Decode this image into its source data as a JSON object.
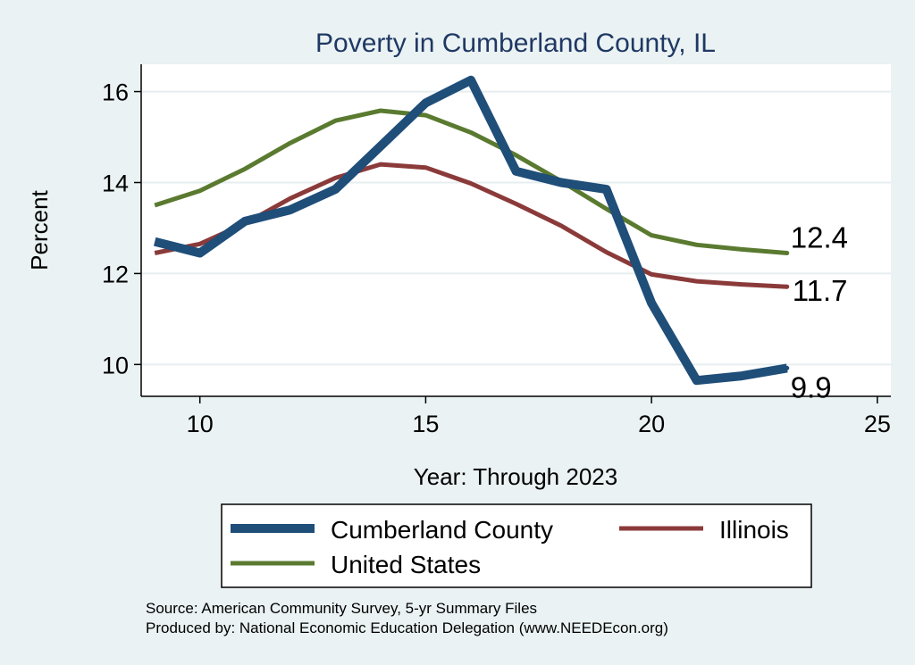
{
  "chart_data": {
    "type": "line",
    "title": "Poverty in Cumberland County, IL",
    "xlabel": "Year: Through 2023",
    "ylabel": "Percent",
    "xlim": [
      8.7,
      25.3
    ],
    "ylim": [
      9.3,
      16.6
    ],
    "x_ticks": [
      10,
      15,
      20,
      25
    ],
    "y_ticks": [
      10,
      12,
      14,
      16
    ],
    "grid": true,
    "legend_position": "bottom",
    "series": [
      {
        "name": "Cumberland County",
        "color": "#1f4e79",
        "x": [
          9,
          10,
          11,
          12,
          13,
          14,
          15,
          16,
          17,
          18,
          19,
          20,
          21,
          22,
          23
        ],
        "values": [
          12.7,
          12.45,
          13.15,
          13.4,
          13.85,
          14.8,
          15.75,
          16.25,
          14.25,
          14.0,
          13.85,
          11.35,
          9.65,
          9.75,
          9.92
        ],
        "end_label": "9.9"
      },
      {
        "name": "Illinois",
        "color": "#8b3a3a",
        "x": [
          9,
          10,
          11,
          12,
          13,
          14,
          15,
          16,
          17,
          18,
          19,
          20,
          21,
          22,
          23
        ],
        "values": [
          12.45,
          12.65,
          13.1,
          13.65,
          14.1,
          14.4,
          14.33,
          13.98,
          13.53,
          13.05,
          12.47,
          11.98,
          11.83,
          11.76,
          11.71
        ],
        "end_label": "11.7"
      },
      {
        "name": "United States",
        "color": "#5a7a30",
        "x": [
          9,
          10,
          11,
          12,
          13,
          14,
          15,
          16,
          17,
          18,
          19,
          20,
          21,
          22,
          23
        ],
        "values": [
          13.5,
          13.82,
          14.3,
          14.87,
          15.36,
          15.58,
          15.48,
          15.1,
          14.6,
          14.03,
          13.42,
          12.84,
          12.63,
          12.53,
          12.45
        ],
        "end_label": "12.4"
      }
    ],
    "source_lines": [
      "Source: American Community Survey, 5-yr Summary Files",
      "Produced by: National Economic Education Delegation (www.NEEDEcon.org)"
    ]
  }
}
